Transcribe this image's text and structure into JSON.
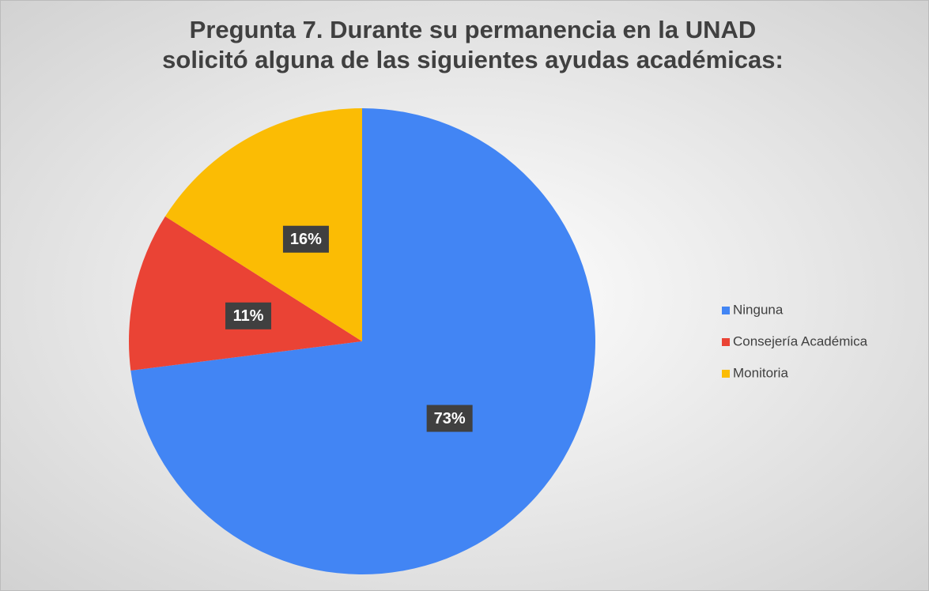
{
  "chart_data": {
    "type": "pie",
    "title": [
      "Pregunta 7. Durante su permanencia en la UNAD",
      "solicitó alguna de las siguientes ayudas académicas:"
    ],
    "categories": [
      "Ninguna",
      "Consejería Académica",
      "Monitoria"
    ],
    "values": [
      73,
      11,
      16
    ],
    "value_labels": [
      "73%",
      "11%",
      "16%"
    ],
    "colors": [
      "#4285f4",
      "#ea4335",
      "#fbbc04"
    ],
    "legend": "right"
  }
}
